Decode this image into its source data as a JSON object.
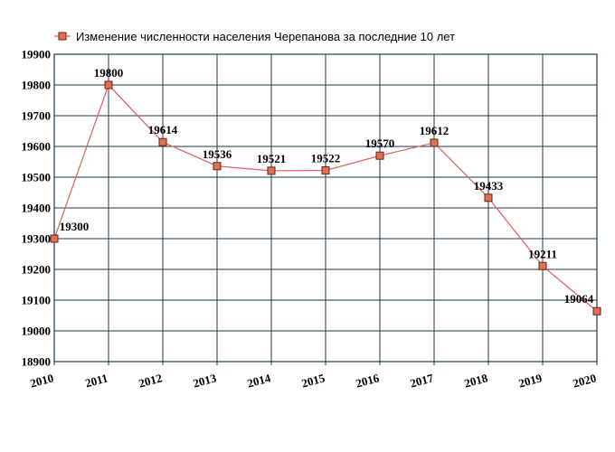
{
  "chart_data": {
    "type": "line",
    "title": "Изменение численности населения Черепанова за последние 10 лет",
    "x": [
      "2010",
      "2011",
      "2012",
      "2013",
      "2014",
      "2015",
      "2016",
      "2017",
      "2018",
      "2019",
      "2020"
    ],
    "series": [
      {
        "name": "Изменение численности населения Черепанова за последние 10 лет",
        "values": [
          19300,
          19800,
          19614,
          19536,
          19521,
          19522,
          19570,
          19612,
          19433,
          19211,
          19064
        ],
        "data_labels": [
          "19300",
          "19800",
          "19614",
          "19536",
          "19521",
          "19522",
          "19570",
          "19612",
          "19433",
          "19211",
          "19064"
        ]
      }
    ],
    "y_ticks": [
      "18900",
      "19000",
      "19100",
      "19200",
      "19300",
      "19400",
      "19500",
      "19600",
      "19700",
      "19800",
      "19900"
    ],
    "ylim": [
      18900,
      19900
    ],
    "grid": true,
    "legend_position": "top-left",
    "colors": {
      "line": "#e06666",
      "marker_fill": "#e07050",
      "marker_stroke": "#5a2a1a",
      "grid": "#1f3a4d"
    }
  }
}
